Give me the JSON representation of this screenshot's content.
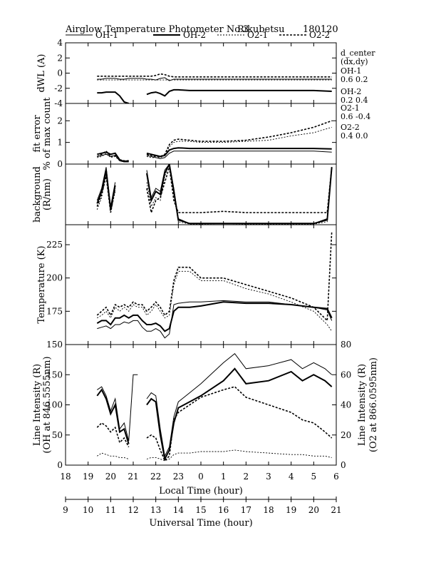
{
  "title": {
    "text": "Airglow Temperature Photometer No.3",
    "site": "Rikubetsu",
    "date": "180120"
  },
  "legend": [
    {
      "name": "OH-1",
      "style": "solid-thin"
    },
    {
      "name": "OH-2",
      "style": "solid-thick"
    },
    {
      "name": "O2-1",
      "style": "dotted-thin"
    },
    {
      "name": "O2-2",
      "style": "dotted-thick"
    }
  ],
  "side_notes": {
    "header": [
      "d_center",
      "(dx,dy)"
    ],
    "entries": [
      {
        "name": "OH-1",
        "values": "0.6   0.2"
      },
      {
        "name": "OH-2",
        "values": "0.2   0.4"
      },
      {
        "name": "O2-1",
        "values": "0.6  -0.4"
      },
      {
        "name": "O2-2",
        "values": "0.4   0.0"
      }
    ]
  },
  "x_axes": {
    "local": {
      "label": "Local Time (hour)",
      "ticks": [
        "18",
        "19",
        "20",
        "21",
        "22",
        "23",
        "0",
        "1",
        "2",
        "3",
        "4",
        "5",
        "6"
      ]
    },
    "universal": {
      "label": "Universal Time (hour)",
      "ticks": [
        "9",
        "10",
        "11",
        "12",
        "13",
        "14",
        "15",
        "16",
        "17",
        "18",
        "19",
        "20",
        "21"
      ]
    }
  },
  "chart_data": [
    {
      "type": "line",
      "panel": "dwl",
      "ylabel": "dWL (A)",
      "ylim": [
        -4,
        4
      ],
      "yticks": [
        "-4",
        "-2",
        "0",
        "2",
        "4"
      ],
      "x": [
        19.4,
        19.6,
        19.8,
        20.0,
        20.2,
        20.4,
        20.6,
        20.8,
        21.0,
        21.2,
        21.4,
        21.6,
        21.8,
        22.0,
        22.2,
        22.4,
        22.6,
        22.8,
        23.0,
        23.5,
        24.0,
        25.0,
        26.0,
        27.0,
        28.0,
        29.0,
        29.8
      ],
      "series": [
        {
          "name": "OH-1",
          "values": [
            -0.8,
            -0.8,
            -0.7,
            -0.7,
            -0.7,
            -0.8,
            -0.8,
            -0.7,
            -0.7,
            -0.7,
            -0.7,
            -0.8,
            -0.8,
            -0.9,
            -0.7,
            -0.6,
            -1.0,
            -0.8,
            -0.8,
            -0.8,
            -0.8,
            -0.8,
            -0.8,
            -0.8,
            -0.8,
            -0.8,
            -0.8
          ]
        },
        {
          "name": "OH-2",
          "values": [
            -2.6,
            -2.6,
            -2.5,
            -2.5,
            -2.5,
            -3.0,
            -3.8,
            -4.0,
            null,
            null,
            null,
            -2.8,
            -2.6,
            -2.5,
            -2.7,
            -3.0,
            -2.4,
            -2.2,
            -2.2,
            -2.3,
            -2.3,
            -2.3,
            -2.3,
            -2.3,
            -2.3,
            -2.3,
            -2.4
          ]
        },
        {
          "name": "O2-1",
          "values": [
            -0.9,
            -0.9,
            -0.9,
            -0.9,
            -0.9,
            -0.9,
            -0.9,
            -0.9,
            -0.9,
            -0.9,
            -0.9,
            -0.9,
            -0.9,
            -0.9,
            -0.9,
            -0.9,
            -0.9,
            -0.9,
            -0.9,
            -0.9,
            -0.9,
            -0.9,
            -0.9,
            -0.9,
            -0.9,
            -0.9,
            -0.9
          ]
        },
        {
          "name": "O2-2",
          "values": [
            -0.4,
            -0.4,
            -0.4,
            -0.4,
            -0.4,
            -0.4,
            -0.4,
            -0.4,
            -0.4,
            -0.4,
            -0.4,
            -0.4,
            -0.4,
            -0.3,
            -0.1,
            -0.2,
            -0.4,
            -0.5,
            -0.5,
            -0.5,
            -0.5,
            -0.5,
            -0.5,
            -0.5,
            -0.5,
            -0.5,
            -0.5
          ]
        }
      ]
    },
    {
      "type": "line",
      "panel": "fit_error",
      "ylabel": "fit error",
      "ylabel2": "% of max count",
      "ylim": [
        0,
        2.8
      ],
      "yticks": [
        "0",
        "1",
        "2"
      ],
      "x": [
        19.4,
        19.6,
        19.8,
        20.0,
        20.2,
        20.4,
        20.6,
        20.8,
        21.0,
        21.2,
        21.4,
        21.6,
        21.8,
        22.0,
        22.2,
        22.4,
        22.6,
        22.8,
        23.0,
        23.5,
        24.0,
        25.0,
        26.0,
        27.0,
        28.0,
        29.0,
        29.8
      ],
      "series": [
        {
          "name": "OH-1",
          "values": [
            0.35,
            0.4,
            0.45,
            0.35,
            0.4,
            0.15,
            0.1,
            0.1,
            null,
            null,
            null,
            0.4,
            0.35,
            0.3,
            0.25,
            0.3,
            0.5,
            0.6,
            0.6,
            0.6,
            0.6,
            0.6,
            0.6,
            0.6,
            0.6,
            0.6,
            0.55
          ]
        },
        {
          "name": "OH-2",
          "values": [
            0.45,
            0.5,
            0.55,
            0.45,
            0.5,
            0.2,
            0.12,
            0.15,
            null,
            null,
            null,
            0.5,
            0.45,
            0.4,
            0.35,
            0.4,
            0.65,
            0.72,
            0.75,
            0.72,
            0.72,
            0.72,
            0.72,
            0.72,
            0.72,
            0.72,
            0.7
          ]
        },
        {
          "name": "O2-1",
          "values": [
            0.3,
            0.35,
            0.5,
            0.3,
            0.35,
            0.15,
            0.1,
            0.1,
            null,
            null,
            null,
            0.35,
            0.3,
            0.3,
            0.3,
            0.4,
            0.8,
            1.0,
            1.05,
            1.05,
            1.0,
            1.0,
            1.05,
            1.1,
            1.3,
            1.45,
            1.7
          ]
        },
        {
          "name": "O2-2",
          "values": [
            0.35,
            0.45,
            0.6,
            0.35,
            0.4,
            0.2,
            0.15,
            0.15,
            null,
            null,
            null,
            0.45,
            0.4,
            0.35,
            0.35,
            0.45,
            0.9,
            1.1,
            1.15,
            1.1,
            1.05,
            1.05,
            1.1,
            1.25,
            1.45,
            1.7,
            2.0
          ]
        }
      ]
    },
    {
      "type": "line",
      "panel": "background",
      "ylabel": "background",
      "ylabel2": "(R/nm)",
      "ylim": [
        0,
        100
      ],
      "x": [
        19.4,
        19.6,
        19.8,
        20.0,
        20.2,
        20.4,
        20.6,
        20.8,
        21.0,
        21.2,
        21.4,
        21.6,
        21.8,
        22.0,
        22.2,
        22.4,
        22.6,
        22.8,
        23.0,
        23.5,
        24.0,
        25.0,
        26.0,
        27.0,
        28.0,
        29.0,
        29.6,
        29.8
      ],
      "series": [
        {
          "name": "OH-1",
          "values": [
            40,
            60,
            95,
            30,
            70,
            null,
            null,
            null,
            null,
            null,
            null,
            90,
            45,
            60,
            55,
            90,
            100,
            60,
            10,
            2,
            2,
            2,
            2,
            2,
            2,
            2,
            10,
            95
          ]
        },
        {
          "name": "OH-2",
          "values": [
            35,
            55,
            90,
            25,
            65,
            null,
            null,
            null,
            null,
            null,
            null,
            85,
            40,
            55,
            50,
            85,
            100,
            55,
            8,
            2,
            2,
            2,
            2,
            2,
            2,
            2,
            8,
            95
          ]
        },
        {
          "name": "O2-1",
          "values": [
            25,
            45,
            85,
            20,
            55,
            null,
            null,
            null,
            null,
            null,
            null,
            70,
            30,
            45,
            40,
            80,
            100,
            50,
            5,
            1,
            1,
            2,
            1,
            1,
            1,
            1,
            5,
            95
          ]
        },
        {
          "name": "O2-2",
          "values": [
            30,
            50,
            80,
            20,
            60,
            null,
            null,
            null,
            null,
            null,
            null,
            60,
            20,
            40,
            45,
            70,
            95,
            40,
            20,
            20,
            20,
            22,
            20,
            20,
            20,
            20,
            20,
            95
          ]
        }
      ]
    },
    {
      "type": "line",
      "panel": "temperature",
      "ylabel": "Temperature (K)",
      "ylim": [
        150,
        240
      ],
      "yticks": [
        "150",
        "175",
        "200",
        "225"
      ],
      "x": [
        19.4,
        19.6,
        19.8,
        20.0,
        20.2,
        20.4,
        20.6,
        20.8,
        21.0,
        21.2,
        21.4,
        21.6,
        21.8,
        22.0,
        22.2,
        22.4,
        22.6,
        22.8,
        23.0,
        23.5,
        24.0,
        25.0,
        26.0,
        27.0,
        28.0,
        29.0,
        29.6,
        29.8
      ],
      "series": [
        {
          "name": "OH-1",
          "values": [
            162,
            163,
            164,
            162,
            165,
            165,
            167,
            166,
            168,
            168,
            163,
            160,
            160,
            162,
            160,
            155,
            158,
            180,
            181,
            182,
            182,
            183,
            182,
            182,
            180,
            178,
            176,
            168
          ]
        },
        {
          "name": "OH-2",
          "values": [
            166,
            168,
            168,
            165,
            170,
            170,
            172,
            170,
            172,
            172,
            168,
            165,
            165,
            166,
            164,
            160,
            162,
            175,
            178,
            178,
            179,
            182,
            181,
            181,
            180,
            178,
            177,
            170
          ]
        },
        {
          "name": "O2-1",
          "values": [
            170,
            172,
            175,
            170,
            178,
            175,
            178,
            175,
            180,
            178,
            178,
            172,
            175,
            180,
            175,
            170,
            172,
            195,
            205,
            205,
            198,
            198,
            192,
            188,
            182,
            175,
            165,
            160
          ]
        },
        {
          "name": "O2-2",
          "values": [
            172,
            175,
            178,
            172,
            180,
            178,
            180,
            178,
            182,
            180,
            180,
            175,
            178,
            182,
            178,
            172,
            175,
            198,
            208,
            208,
            200,
            200,
            195,
            190,
            185,
            178,
            168,
            235
          ]
        }
      ]
    },
    {
      "type": "line",
      "panel": "intensity",
      "ylabel": "Line Intensity (R)",
      "ylabel2": "(OH at 846.5555nm)",
      "ylabel_right": "Line Intensity (R)",
      "ylabel_right2": "(O2 at 866.0595nm)",
      "ylim": [
        0,
        200
      ],
      "ylim_right": [
        0,
        80
      ],
      "yticks": [
        "0",
        "50",
        "100",
        "150"
      ],
      "yticks_right": [
        "0",
        "20",
        "40",
        "60",
        "80"
      ],
      "x": [
        19.4,
        19.6,
        19.8,
        20.0,
        20.2,
        20.4,
        20.6,
        20.8,
        21.0,
        21.2,
        21.4,
        21.6,
        21.8,
        22.0,
        22.2,
        22.4,
        22.6,
        22.8,
        23.0,
        23.5,
        24.0,
        25.0,
        25.5,
        26.0,
        27.0,
        28.0,
        28.5,
        29.0,
        29.5,
        29.8
      ],
      "series": [
        {
          "name": "OH-1",
          "values": [
            125,
            130,
            115,
            90,
            110,
            60,
            70,
            40,
            150,
            150,
            null,
            110,
            120,
            115,
            60,
            15,
            30,
            80,
            105,
            120,
            135,
            170,
            185,
            160,
            165,
            175,
            160,
            170,
            160,
            150
          ]
        },
        {
          "name": "OH-2",
          "values": [
            115,
            125,
            110,
            85,
            100,
            55,
            60,
            35,
            null,
            null,
            null,
            100,
            110,
            105,
            50,
            10,
            25,
            70,
            95,
            105,
            115,
            140,
            160,
            135,
            140,
            155,
            140,
            150,
            140,
            130
          ]
        },
        {
          "name": "O2-1",
          "values": [
            6,
            8,
            7,
            6,
            6,
            5,
            5,
            4,
            null,
            null,
            null,
            4,
            5,
            5,
            4,
            3,
            4,
            7,
            8,
            8,
            9,
            9,
            10,
            9,
            8,
            7,
            7,
            6,
            6,
            5
          ]
        },
        {
          "name": "O2-2",
          "values": [
            25,
            28,
            26,
            22,
            25,
            15,
            18,
            12,
            null,
            null,
            null,
            18,
            20,
            18,
            10,
            3,
            6,
            30,
            35,
            40,
            45,
            50,
            52,
            45,
            40,
            35,
            30,
            28,
            22,
            18
          ]
        }
      ]
    }
  ]
}
